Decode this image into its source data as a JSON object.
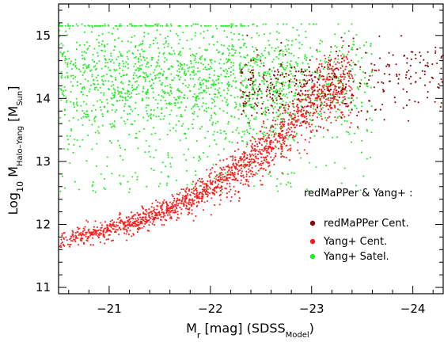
{
  "chart_data": {
    "type": "scatter",
    "title": "",
    "xlabel": {
      "main": "M",
      "sub": "r",
      "rest": " [mag] (SDSS",
      "sub2": "Model",
      "tail": ")"
    },
    "ylabel": {
      "main": "Log",
      "sub": "10",
      "mid": " M",
      "sub2": "Halo–Yang",
      "rest": " [M",
      "sub3": "Sun",
      "tail": "]"
    },
    "xlim": [
      -20.5,
      -24.3
    ],
    "ylim": [
      10.9,
      15.5
    ],
    "xticks": [
      -21,
      -22,
      -23,
      -24
    ],
    "xtick_labels": [
      "−21",
      "−22",
      "−23",
      "−24"
    ],
    "yticks": [
      11,
      12,
      13,
      14,
      15
    ],
    "ytick_labels": [
      "11",
      "12",
      "13",
      "14",
      "15"
    ],
    "grid": false,
    "legend": {
      "title": "redMaPPer & Yang+ :",
      "position": "right-center",
      "entries": [
        {
          "label": "redMaPPer Cent.",
          "color": "#8b0000"
        },
        {
          "label": "Yang+ Cent.",
          "color": "#ff1a1a"
        },
        {
          "label": "Yang+ Satel.",
          "color": "#22ee22"
        }
      ]
    },
    "series": [
      {
        "label": "Yang+ Satel.",
        "color": "#22ee22",
        "distribution": {
          "x_range": [
            -20.5,
            -23.6
          ],
          "y_range": [
            12.4,
            15.2
          ],
          "y_mode": 14.35,
          "upper_limit_y": 15.15,
          "density_falloff_x": -22.8
        }
      },
      {
        "label": "Yang+ Cent.",
        "color": "#ff1a1a",
        "relation": {
          "anchor_points": [
            [
              -20.5,
              11.72
            ],
            [
              -21.0,
              11.93
            ],
            [
              -21.5,
              12.17
            ],
            [
              -22.0,
              12.56
            ],
            [
              -22.5,
              13.12
            ],
            [
              -22.8,
              13.6
            ],
            [
              -23.0,
              13.95
            ],
            [
              -23.3,
              14.25
            ]
          ],
          "scatter_dex": 0.08
        }
      },
      {
        "label": "redMaPPer Cent.",
        "color": "#8b0000",
        "distribution": {
          "x_range": [
            -22.3,
            -24.3
          ],
          "y_range": [
            12.8,
            15.0
          ],
          "y_mode": 14.2
        }
      }
    ]
  }
}
